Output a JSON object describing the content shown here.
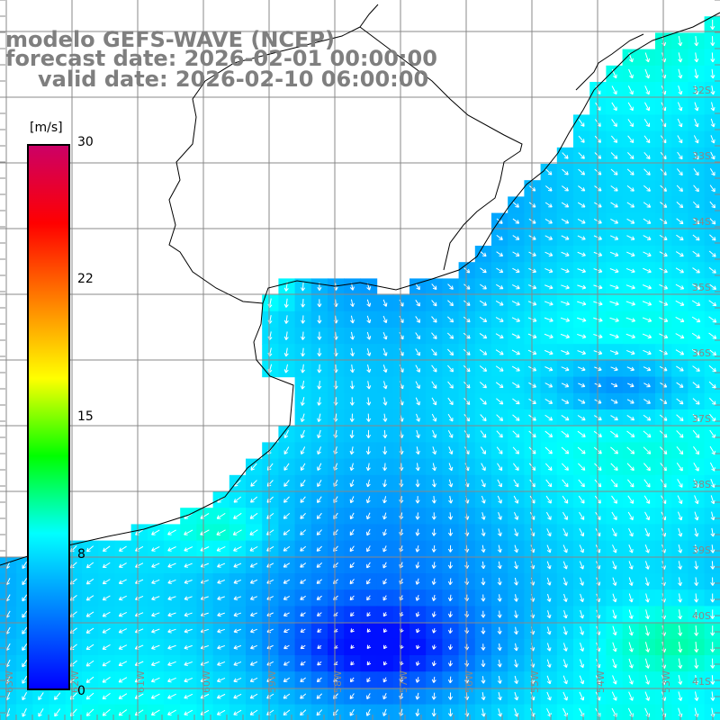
{
  "title": {
    "model": "modelo GEFS-WAVE (NCEP)",
    "forecast": "forecast date: 2026-02-01 00:00:00",
    "valid": "valid date: 2026-02-10 06:00:00"
  },
  "colorbar": {
    "units": "[m/s]",
    "ticks": [
      "30",
      "22",
      "15",
      "8",
      "0"
    ],
    "tick_values": [
      30,
      22,
      15,
      8,
      0
    ],
    "range": [
      0,
      30
    ],
    "colors": [
      "#0000ff",
      "#0080ff",
      "#00ffff",
      "#00ff00",
      "#ffff00",
      "#ff8000",
      "#ff0000",
      "#cc0066"
    ]
  },
  "lat_labels": [
    "32S",
    "33S",
    "34S",
    "35S",
    "36S",
    "37S",
    "38S",
    "39S",
    "40S",
    "41S"
  ],
  "lon_labels": [
    "63W",
    "62W",
    "61W",
    "60W",
    "59W",
    "58W",
    "57W",
    "56W",
    "55W",
    "54W",
    "53W"
  ],
  "grid": {
    "lon_range": [
      -64,
      -52
    ],
    "lat_range": [
      -31,
      -42
    ],
    "step_deg": 1
  },
  "map_colors": {
    "land": "#ffffff",
    "coast": "#000000",
    "grid": "#888888",
    "arrow": "#ffffff",
    "axis_text": "#888888"
  }
}
